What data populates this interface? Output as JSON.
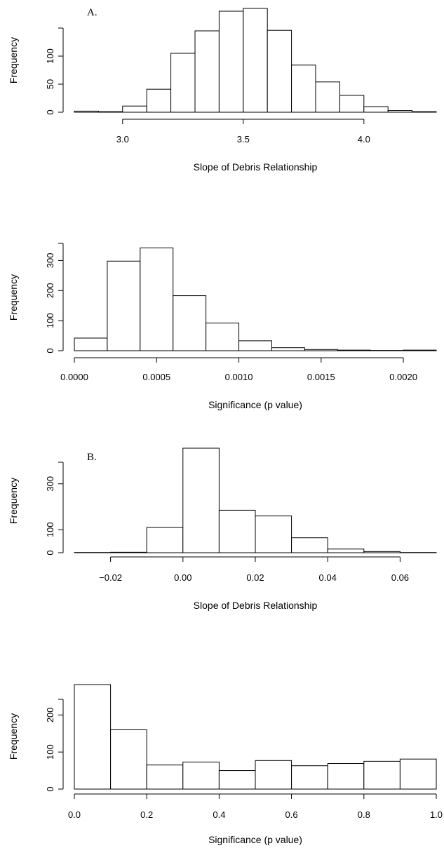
{
  "chart_data": [
    {
      "type": "bar",
      "panel_label": "A.",
      "xlabel": "Slope of Debris Relationship",
      "ylabel": "Frequency",
      "bin_edges": [
        2.8,
        2.9,
        3.0,
        3.1,
        3.2,
        3.3,
        3.4,
        3.5,
        3.6,
        3.7,
        3.8,
        3.9,
        4.0,
        4.1,
        4.2,
        4.3
      ],
      "values": [
        2,
        1,
        11,
        41,
        105,
        145,
        180,
        185,
        146,
        84,
        54,
        30,
        10,
        3,
        1
      ],
      "xlim": [
        2.8,
        4.3
      ],
      "ylim": [
        0,
        185
      ],
      "x_ticks": [
        "3.0",
        "3.5",
        "4.0"
      ],
      "y_ticks": [
        "0",
        "50",
        "100"
      ]
    },
    {
      "type": "bar",
      "panel_label": "",
      "xlabel": "Significance (p value)",
      "ylabel": "Frequency",
      "bin_edges": [
        0.0,
        0.0002,
        0.0004,
        0.0006,
        0.0008,
        0.001,
        0.0012,
        0.0014,
        0.0016,
        0.0018,
        0.002,
        0.0022
      ],
      "values": [
        42,
        298,
        342,
        183,
        92,
        33,
        10,
        4,
        2,
        1,
        2
      ],
      "xlim": [
        0.0,
        0.0022
      ],
      "ylim": [
        0,
        350
      ],
      "x_ticks": [
        "0.0000",
        "0.0005",
        "0.0010",
        "0.0015",
        "0.0020"
      ],
      "y_ticks": [
        "0",
        "100",
        "200",
        "300"
      ]
    },
    {
      "type": "bar",
      "panel_label": "B.",
      "xlabel": "Slope of Debris Relationship",
      "ylabel": "Frequency",
      "bin_edges": [
        -0.03,
        -0.02,
        -0.01,
        0.0,
        0.01,
        0.02,
        0.03,
        0.04,
        0.05,
        0.06,
        0.07
      ],
      "values": [
        1,
        2,
        110,
        455,
        185,
        160,
        65,
        16,
        5,
        1
      ],
      "xlim": [
        -0.03,
        0.07
      ],
      "ylim": [
        0,
        455
      ],
      "x_ticks": [
        "−0.02",
        "0.00",
        "0.02",
        "0.04",
        "0.06"
      ],
      "y_ticks": [
        "0",
        "100",
        "300"
      ]
    },
    {
      "type": "bar",
      "panel_label": "",
      "xlabel": "Significance (p value)",
      "ylabel": "Frequency",
      "bin_edges": [
        0.0,
        0.1,
        0.2,
        0.3,
        0.4,
        0.5,
        0.6,
        0.7,
        0.8,
        0.9,
        1.0
      ],
      "values": [
        282,
        160,
        65,
        73,
        50,
        77,
        63,
        69,
        75,
        81
      ],
      "xlim": [
        0.0,
        1.0
      ],
      "ylim": [
        0,
        282
      ],
      "x_ticks": [
        "0.0",
        "0.2",
        "0.4",
        "0.6",
        "0.8",
        "1.0"
      ],
      "y_ticks": [
        "0",
        "100",
        "200"
      ]
    }
  ]
}
